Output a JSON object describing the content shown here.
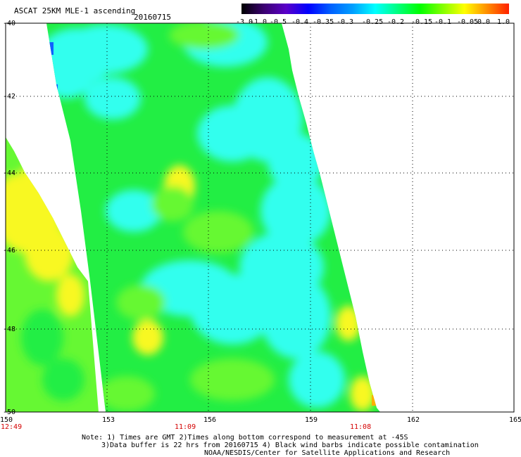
{
  "header": {
    "title": "ASCAT 25KM MLE-1 ascending",
    "date": "20160715"
  },
  "colorbar": {
    "labels": [
      "-3.0",
      "-1.0",
      "-0.5",
      "-0.4",
      "-0.35",
      "-0.3",
      "-0.25",
      "-0.2",
      "-0.15",
      "-0.1",
      "-0.05",
      "0.0",
      "1.0"
    ],
    "colors": [
      "#000000",
      "#3a0070",
      "#5a00c8",
      "#0000ff",
      "#0060ff",
      "#00a0ff",
      "#00ffff",
      "#00ff80",
      "#00ff00",
      "#80ff00",
      "#ffff00",
      "#ff9000",
      "#ff2000"
    ]
  },
  "map": {
    "lat_labels": [
      "-40",
      "-42",
      "-44",
      "-46",
      "-48",
      "-50"
    ],
    "lon_labels": [
      "150",
      "153",
      "156",
      "159",
      "162",
      "165"
    ],
    "time_labels": [
      "12:49",
      "11:09",
      "11:08"
    ],
    "swath_colors": {
      "cyan": "#33ffee",
      "green": "#22ee44",
      "lightgreen": "#66f833",
      "yellow": "#f8f820",
      "orange": "#ffb000",
      "blue": "#1060ff"
    }
  },
  "notes": {
    "line1": "Note: 1) Times are GMT 2)Times along bottom correspond to measurement at -45S",
    "line2": "3)Data buffer is 22 hrs from 20160715 4) Black wind barbs indicate possible contamination",
    "line3": "NOAA/NESDIS/Center for Satellite Applications and Research"
  }
}
